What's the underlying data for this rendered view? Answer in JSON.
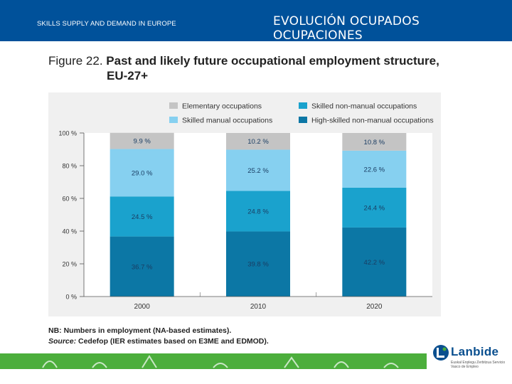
{
  "header": {
    "left_text": "SKILLS SUPPLY AND DEMAND IN EUROPE",
    "right_text": "EVOLUCIÓN OCUPADOS OCUPACIONES",
    "bg_color": "#00519a"
  },
  "figure": {
    "number": "Figure 22.",
    "title": "Past and likely future occupational employment structure,",
    "title_cont": "EU-27+"
  },
  "chart_data": {
    "type": "bar",
    "stacked": true,
    "categories": [
      "2000",
      "2010",
      "2020"
    ],
    "series": [
      {
        "name": "High-skilled non-manual occupations",
        "color": "#0c77a5",
        "values": [
          36.7,
          39.8,
          42.2
        ],
        "labels": [
          "36.7 %",
          "39.8 %",
          "42.2 %"
        ]
      },
      {
        "name": "Skilled non-manual occupations",
        "color": "#1aa2cd",
        "values": [
          24.5,
          24.8,
          24.4
        ],
        "labels": [
          "24.5 %",
          "24.8 %",
          "24.4 %"
        ]
      },
      {
        "name": "Skilled manual occupations",
        "color": "#86d0f0",
        "values": [
          29.0,
          25.2,
          22.6
        ],
        "labels": [
          "29.0 %",
          "25.2 %",
          "22.6 %"
        ]
      },
      {
        "name": "Elementary occupations",
        "color": "#c4c4c4",
        "values": [
          9.9,
          10.2,
          10.8
        ],
        "labels": [
          "9.9 %",
          "10.2 %",
          "10.8 %"
        ]
      }
    ],
    "legend": [
      {
        "label": "Elementary occupations",
        "color": "#c4c4c4"
      },
      {
        "label": "Skilled non-manual occupations",
        "color": "#1aa2cd"
      },
      {
        "label": "Skilled manual occupations",
        "color": "#86d0f0"
      },
      {
        "label": "High-skilled non-manual occupations",
        "color": "#0c77a5"
      }
    ],
    "yticks": [
      "0 %",
      "20 %",
      "40 %",
      "60 %",
      "80 %",
      "100 %"
    ],
    "ylim": [
      0,
      100
    ],
    "xlabel": "",
    "ylabel": "",
    "legend_position": "top"
  },
  "notes": {
    "nb": "NB: Numbers in employment (NA-based estimates).",
    "source_label": "Source:",
    "source_text": " Cedefop (IER estimates based on E3ME and EDMOD)."
  },
  "logo": {
    "name": "Lanbide",
    "tagline": "Euskal Enplegu Zerbitzua Servicio Vasco de Empleo"
  }
}
